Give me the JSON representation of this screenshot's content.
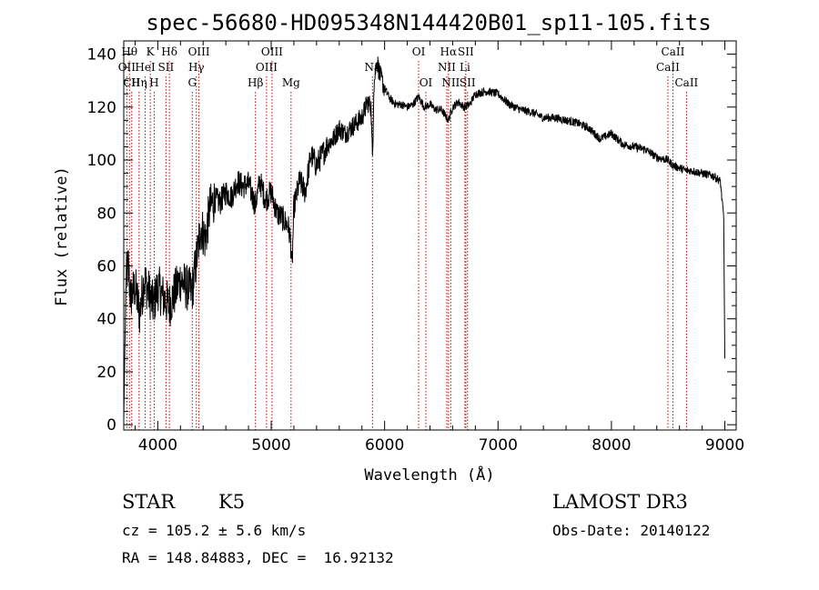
{
  "chart_data": {
    "type": "line",
    "title": "spec-56680-HD095348N144420B01_sp11-105.fits",
    "xlabel": "Wavelength (Å)",
    "ylabel": "Flux (relative)",
    "xlim": [
      3700,
      9100
    ],
    "ylim": [
      -2,
      145
    ],
    "xticks": [
      4000,
      5000,
      6000,
      7000,
      8000,
      9000
    ],
    "yticks": [
      0,
      20,
      40,
      60,
      80,
      100,
      120,
      140
    ],
    "grid": false,
    "line_color": "#000000",
    "marker_color": "#cc0000",
    "spectrum_anchors": {
      "x": [
        3700,
        3720,
        3740,
        3760,
        3800,
        3840,
        3880,
        3920,
        3960,
        4000,
        4050,
        4100,
        4150,
        4200,
        4250,
        4300,
        4340,
        4380,
        4420,
        4460,
        4500,
        4550,
        4600,
        4650,
        4700,
        4750,
        4800,
        4860,
        4900,
        4950,
        5000,
        5050,
        5100,
        5150,
        5170,
        5183,
        5200,
        5250,
        5300,
        5350,
        5400,
        5450,
        5500,
        5550,
        5600,
        5650,
        5700,
        5750,
        5800,
        5850,
        5880,
        5893,
        5905,
        5930,
        5960,
        6000,
        6050,
        6100,
        6150,
        6200,
        6250,
        6300,
        6350,
        6400,
        6450,
        6500,
        6563,
        6600,
        6650,
        6700,
        6750,
        6800,
        6900,
        7000,
        7100,
        7200,
        7300,
        7400,
        7500,
        7600,
        7700,
        7800,
        7900,
        8000,
        8100,
        8200,
        8300,
        8400,
        8498,
        8542,
        8600,
        8662,
        8700,
        8800,
        8900,
        8960,
        8990,
        9000
      ],
      "y": [
        2,
        55,
        60,
        48,
        52,
        42,
        55,
        50,
        45,
        52,
        48,
        45,
        50,
        55,
        52,
        50,
        62,
        75,
        70,
        82,
        85,
        84,
        88,
        86,
        92,
        90,
        91,
        83,
        92,
        85,
        88,
        80,
        78,
        75,
        70,
        58,
        82,
        92,
        88,
        102,
        98,
        102,
        106,
        108,
        112,
        110,
        112,
        114,
        116,
        122,
        120,
        100,
        128,
        138,
        132,
        127,
        123,
        121,
        121,
        120,
        121,
        124,
        120,
        121,
        119,
        119,
        115,
        120,
        122,
        120,
        121,
        125,
        126,
        125,
        121,
        119,
        118,
        116,
        116,
        115,
        114,
        112,
        108,
        110,
        106,
        105,
        104,
        101,
        100,
        98,
        97,
        96,
        96,
        95,
        94,
        92,
        78,
        25
      ]
    },
    "line_markers": [
      {
        "wavelength": 3727,
        "label": "OII",
        "row": 2
      },
      {
        "wavelength": 3750,
        "label": "Hθ",
        "row": 1
      },
      {
        "wavelength": 3770,
        "label": "CII",
        "row": 3
      },
      {
        "wavelength": 3835,
        "label": "Hη",
        "row": 3
      },
      {
        "wavelength": 3889,
        "label": "HeI",
        "row": 2
      },
      {
        "wavelength": 3934,
        "label": "K",
        "row": 1
      },
      {
        "wavelength": 3968,
        "label": "H",
        "row": 3
      },
      {
        "wavelength": 4072,
        "label": "SII",
        "row": 2
      },
      {
        "wavelength": 4102,
        "label": "Hδ",
        "row": 1
      },
      {
        "wavelength": 4304,
        "label": "G",
        "row": 3
      },
      {
        "wavelength": 4340,
        "label": "Hγ",
        "row": 2
      },
      {
        "wavelength": 4363,
        "label": "OIII",
        "row": 1
      },
      {
        "wavelength": 4861,
        "label": "Hβ",
        "row": 3
      },
      {
        "wavelength": 4959,
        "label": "OIII",
        "row": 2
      },
      {
        "wavelength": 5007,
        "label": "OIII",
        "row": 1
      },
      {
        "wavelength": 5175,
        "label": "Mg",
        "row": 3
      },
      {
        "wavelength": 5893,
        "label": "Na",
        "row": 2
      },
      {
        "wavelength": 6300,
        "label": "OI",
        "row": 1
      },
      {
        "wavelength": 6364,
        "label": "OI",
        "row": 3
      },
      {
        "wavelength": 6548,
        "label": "NII",
        "row": 2
      },
      {
        "wavelength": 6563,
        "label": "Hα",
        "row": 1
      },
      {
        "wavelength": 6583,
        "label": "NII",
        "row": 3
      },
      {
        "wavelength": 6708,
        "label": "Li",
        "row": 2
      },
      {
        "wavelength": 6716,
        "label": "SII",
        "row": 1
      },
      {
        "wavelength": 6731,
        "label": "SII",
        "row": 3
      },
      {
        "wavelength": 8498,
        "label": "CaII",
        "row": 2
      },
      {
        "wavelength": 8542,
        "label": "CaII",
        "row": 1
      },
      {
        "wavelength": 8662,
        "label": "CaII",
        "row": 3
      }
    ]
  },
  "info": {
    "object_class": "STAR",
    "subclass": "K5",
    "survey": "LAMOST DR3",
    "redshift_line": "cz = 105.2 ± 5.6 km/s",
    "obs_date_line": "Obs-Date: 20140122",
    "coords_line": "RA = 148.84883, DEC =  16.92132"
  }
}
